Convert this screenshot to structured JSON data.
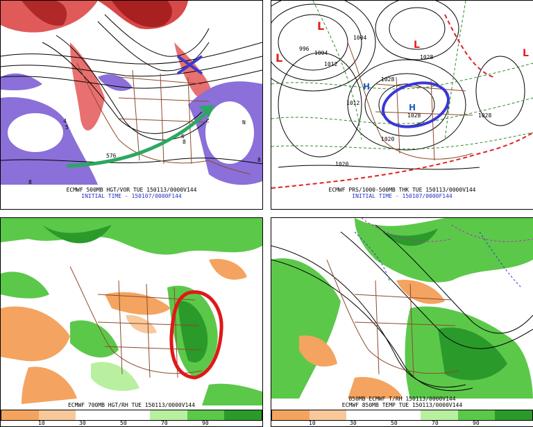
{
  "panels": {
    "top_left": {
      "caption_line1": "ECMWF 500MB HGT/VOR TUE 150113/0000V144",
      "caption_line2": "INITIAL TIME - 150107/0000F144",
      "contour_labels": [
        "576",
        "4",
        "5",
        "8",
        "8",
        "6",
        "8",
        "N"
      ]
    },
    "top_right": {
      "caption_line1": "ECMWF PRS/1000-500MB THK TUE 150113/0000V144",
      "caption_line2": "INITIAL TIME - 150107/0000F144",
      "isobar_labels": [
        "996",
        "1004",
        "1012",
        "1012",
        "1020",
        "1028",
        "1028",
        "1020",
        "1028",
        "1028",
        "1004"
      ],
      "low_labels": [
        "L",
        "L",
        "L",
        "L"
      ],
      "high_labels": [
        "H",
        "H"
      ]
    },
    "bottom_left": {
      "caption_line1": "ECMWF 700MB HGT/RH TUE 150113/0000V144"
    },
    "bottom_right": {
      "caption_line1": "850MB ECMWF T/RH 150113/0000V144",
      "caption_line2": "ECMWF 850MB TEMP TUE 150113/0000V144"
    }
  },
  "rh_scale": {
    "ticks": [
      "10",
      "30",
      "50",
      "70",
      "90"
    ],
    "colors": [
      "#f4a460",
      "#f8c89a",
      "#ffffff",
      "#ffffff",
      "#b8f0a0",
      "#5cc84a",
      "#2a9a2a"
    ]
  },
  "annotation_colors": {
    "x_mark": "#3a3ad0",
    "arrow": "#2aa860",
    "blue_circle": "#3838d8",
    "red_circle": "#e01818"
  }
}
